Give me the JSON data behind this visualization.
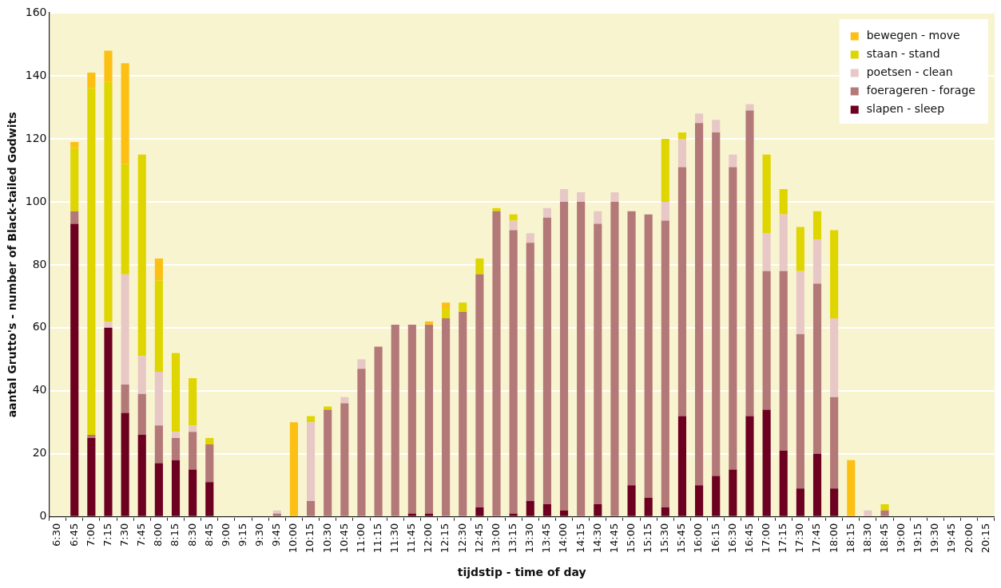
{
  "chart_data": {
    "type": "bar",
    "stacked": true,
    "xlabel": "tijdstip - time of day",
    "ylabel": "aantal Grutto's - number of Black-tailed Godwits",
    "categories": [
      "6:30",
      "6:45",
      "7:00",
      "7:15",
      "7:30",
      "7:45",
      "8:00",
      "8:15",
      "8:30",
      "8:45",
      "9:00",
      "9:15",
      "9:30",
      "9:45",
      "10:00",
      "10:15",
      "10:30",
      "10:45",
      "11:00",
      "11:15",
      "11:30",
      "11:45",
      "12:00",
      "12:15",
      "12:30",
      "12:45",
      "13:00",
      "13:15",
      "13:30",
      "13:45",
      "14:00",
      "14:15",
      "14:30",
      "14:45",
      "15:00",
      "15:15",
      "15:30",
      "15:45",
      "16:00",
      "16:15",
      "16:30",
      "16:45",
      "17:00",
      "17:15",
      "17:30",
      "17:45",
      "18:00",
      "18:15",
      "18:30",
      "18:45",
      "19:00",
      "19:15",
      "19:30",
      "19:45",
      "20:00",
      "20:15"
    ],
    "series": [
      {
        "name": "slapen - sleep",
        "color": "#6d0020",
        "values": [
          0,
          93,
          25,
          60,
          33,
          26,
          17,
          18,
          15,
          11,
          0,
          0,
          0,
          0,
          0,
          0,
          0,
          0,
          0,
          0,
          0,
          1,
          1,
          0,
          0,
          3,
          0,
          1,
          5,
          4,
          2,
          0,
          4,
          0,
          10,
          6,
          3,
          32,
          10,
          13,
          15,
          32,
          34,
          21,
          9,
          20,
          9,
          0,
          0,
          0,
          0,
          0,
          0,
          0,
          0,
          0
        ]
      },
      {
        "name": "foerageren - forage",
        "color": "#b37878",
        "values": [
          0,
          4,
          1,
          0,
          9,
          13,
          12,
          7,
          12,
          12,
          0,
          0,
          0,
          1,
          0,
          5,
          34,
          36,
          47,
          54,
          61,
          60,
          60,
          63,
          65,
          74,
          97,
          90,
          82,
          91,
          98,
          100,
          89,
          100,
          87,
          90,
          91,
          79,
          115,
          109,
          96,
          97,
          44,
          57,
          49,
          54,
          29,
          0,
          0,
          2,
          0,
          0,
          0,
          0,
          0,
          0
        ]
      },
      {
        "name": "poetsen - clean",
        "color": "#e8c8c6",
        "values": [
          0,
          0,
          0,
          2,
          35,
          12,
          17,
          2,
          2,
          0,
          0,
          0,
          0,
          1,
          0,
          25,
          0,
          2,
          3,
          0,
          0,
          0,
          0,
          0,
          0,
          0,
          0,
          3,
          3,
          3,
          4,
          3,
          4,
          3,
          0,
          0,
          6,
          9,
          3,
          4,
          4,
          2,
          12,
          18,
          20,
          14,
          25,
          0,
          2,
          0,
          0,
          0,
          0,
          0,
          0,
          0
        ]
      },
      {
        "name": "staan - stand",
        "color": "#dfd500",
        "values": [
          0,
          20,
          110,
          76,
          35,
          64,
          29,
          25,
          15,
          2,
          0,
          0,
          0,
          0,
          0,
          2,
          1,
          0,
          0,
          0,
          0,
          0,
          0,
          3,
          3,
          5,
          1,
          2,
          0,
          0,
          0,
          0,
          0,
          0,
          0,
          0,
          20,
          2,
          0,
          0,
          0,
          0,
          25,
          8,
          14,
          9,
          28,
          0,
          0,
          2,
          0,
          0,
          0,
          0,
          0,
          0
        ]
      },
      {
        "name": "bewegen - move",
        "color": "#fcc015",
        "values": [
          0,
          2,
          5,
          10,
          32,
          0,
          7,
          0,
          0,
          0,
          0,
          0,
          0,
          0,
          30,
          0,
          0,
          0,
          0,
          0,
          0,
          0,
          1,
          2,
          0,
          0,
          0,
          0,
          0,
          0,
          0,
          0,
          0,
          0,
          0,
          0,
          0,
          0,
          0,
          0,
          0,
          0,
          0,
          0,
          0,
          0,
          0,
          18,
          0,
          0,
          0,
          0,
          0,
          0,
          0,
          0
        ]
      }
    ],
    "ylim": [
      0,
      160
    ],
    "yticks": [
      0,
      20,
      40,
      60,
      80,
      100,
      120,
      140,
      160
    ],
    "grid": "y",
    "legend": "top right"
  }
}
